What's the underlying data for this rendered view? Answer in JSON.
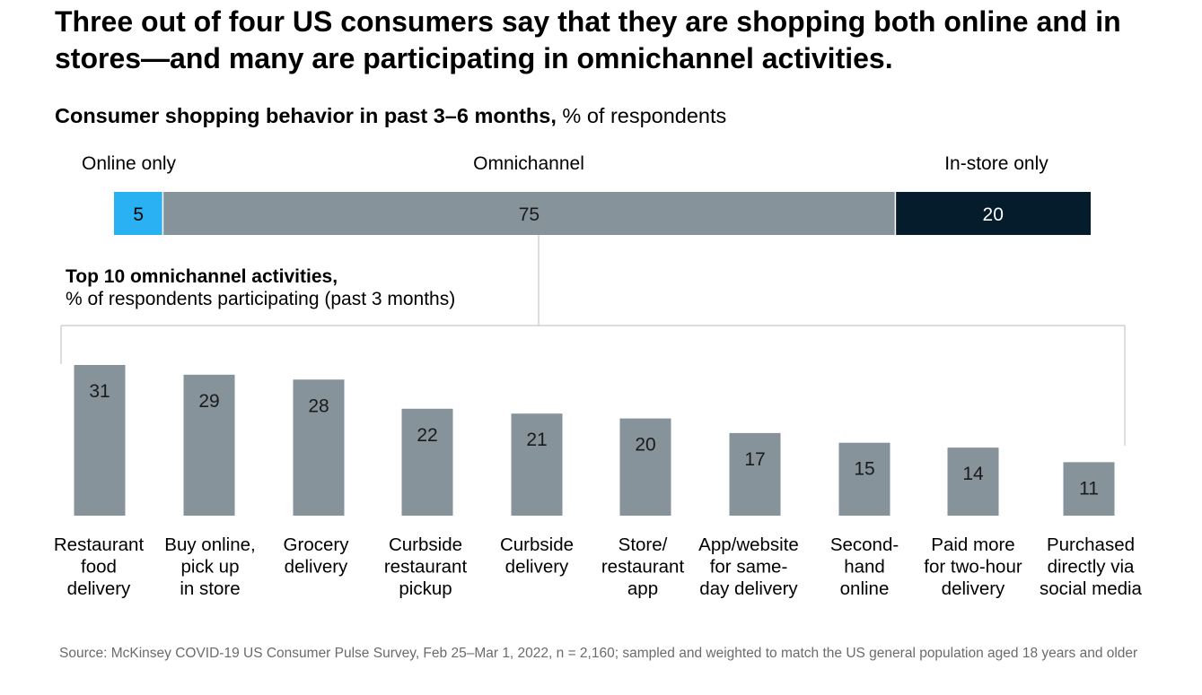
{
  "title": "Three out of four US consumers say that they are shopping both online and in stores—and many are participating in omnichannel activities.",
  "subtitle": {
    "bold": "Consumer shopping behavior in past 3–6 months,",
    "normal": " % of respondents"
  },
  "source": "Source: McKinsey COVID-19 US Consumer Pulse Survey, Feb 25–Mar 1, 2022, n = 2,160; sampled and weighted to match the US general population aged 18 years and older",
  "colors": {
    "online": "#2ab1f3",
    "omni": "#86939b",
    "instore": "#041c2c",
    "bar": "#86939b",
    "line": "#c7c7c7"
  },
  "chart_data": [
    {
      "type": "bar",
      "orientation": "horizontal-stacked",
      "title": "Consumer shopping behavior in past 3–6 months, % of respondents",
      "segments": [
        {
          "label": "Online only",
          "value": 5
        },
        {
          "label": "Omnichannel",
          "value": 75
        },
        {
          "label": "In-store only",
          "value": 20
        }
      ],
      "total": 100
    },
    {
      "type": "bar",
      "title": "Top 10 omnichannel activities,",
      "subtitle": "% of respondents participating (past 3 months)",
      "categories": [
        [
          "Restaurant",
          "food",
          "delivery"
        ],
        [
          "Buy online,",
          "pick up",
          "in store"
        ],
        [
          "Grocery",
          "delivery"
        ],
        [
          "Curbside",
          "restaurant",
          "pickup"
        ],
        [
          "Curbside",
          "delivery"
        ],
        [
          "Store/",
          "restaurant",
          "app"
        ],
        [
          "App/website",
          "for same-",
          "day delivery"
        ],
        [
          "Second-",
          "hand",
          "online"
        ],
        [
          "Paid more",
          "for two-hour",
          "delivery"
        ],
        [
          "Purchased",
          "directly via",
          "social media"
        ]
      ],
      "values": [
        31,
        29,
        28,
        22,
        21,
        20,
        17,
        15,
        14,
        11
      ],
      "ylim": [
        0,
        31
      ]
    }
  ]
}
